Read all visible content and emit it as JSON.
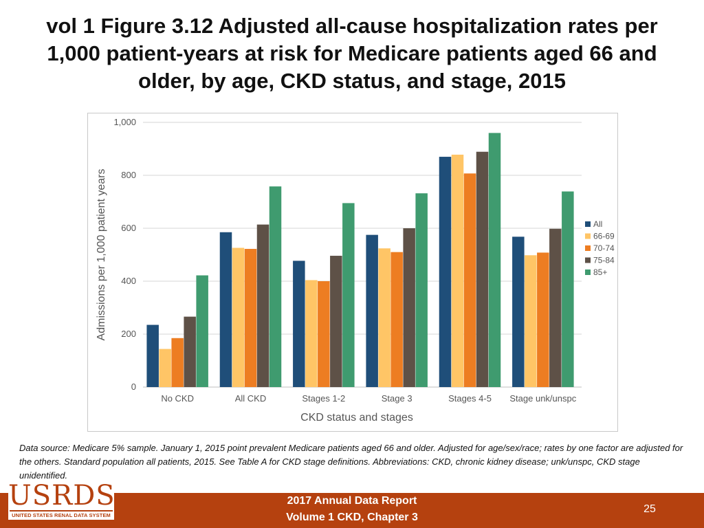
{
  "title": "vol 1 Figure 3.12 Adjusted all-cause hospitalization rates per 1,000 patient-years at risk for Medicare patients aged 66 and older, by age, CKD status, and stage, 2015",
  "chart_data": {
    "type": "bar",
    "xlabel": "CKD status and stages",
    "ylabel": "Admissions per 1,000 patient years",
    "ylim": [
      0,
      1000
    ],
    "yticks": [
      0,
      200,
      400,
      600,
      800,
      1000
    ],
    "ytick_labels": [
      "0",
      "200",
      "400",
      "600",
      "800",
      "1,000"
    ],
    "grid": true,
    "legend_position": "right",
    "categories": [
      "No CKD",
      "All CKD",
      "Stages 1-2",
      "Stage 3",
      "Stages 4-5",
      "Stage unk/unspc"
    ],
    "series": [
      {
        "name": "All",
        "color": "#1f4e79",
        "values": [
          235,
          585,
          477,
          575,
          870,
          568
        ]
      },
      {
        "name": "66-69",
        "color": "#ffc566",
        "values": [
          144,
          526,
          404,
          524,
          878,
          498
        ]
      },
      {
        "name": "70-74",
        "color": "#ed7d22",
        "values": [
          185,
          522,
          400,
          510,
          807,
          508
        ]
      },
      {
        "name": "75-84",
        "color": "#5e5147",
        "values": [
          266,
          614,
          496,
          600,
          889,
          598
        ]
      },
      {
        "name": "85+",
        "color": "#3f9b6f",
        "values": [
          422,
          758,
          695,
          732,
          960,
          739
        ]
      }
    ]
  },
  "footnote": "Data source: Medicare 5% sample. January 1, 2015 point prevalent Medicare patients aged 66 and older. Adjusted for age/sex/race; rates by one factor are adjusted for the others. Standard population all patients, 2015. See Table A for CKD stage definitions. Abbreviations: CKD, chronic kidney disease; unk/unspc, CKD stage unidentified.",
  "logo": {
    "word": "USRDS",
    "subtitle": "UNITED STATES RENAL DATA SYSTEM"
  },
  "footer": {
    "line1": "2017 Annual Data Report",
    "line2": "Volume 1 CKD, Chapter 3",
    "page": "25"
  }
}
